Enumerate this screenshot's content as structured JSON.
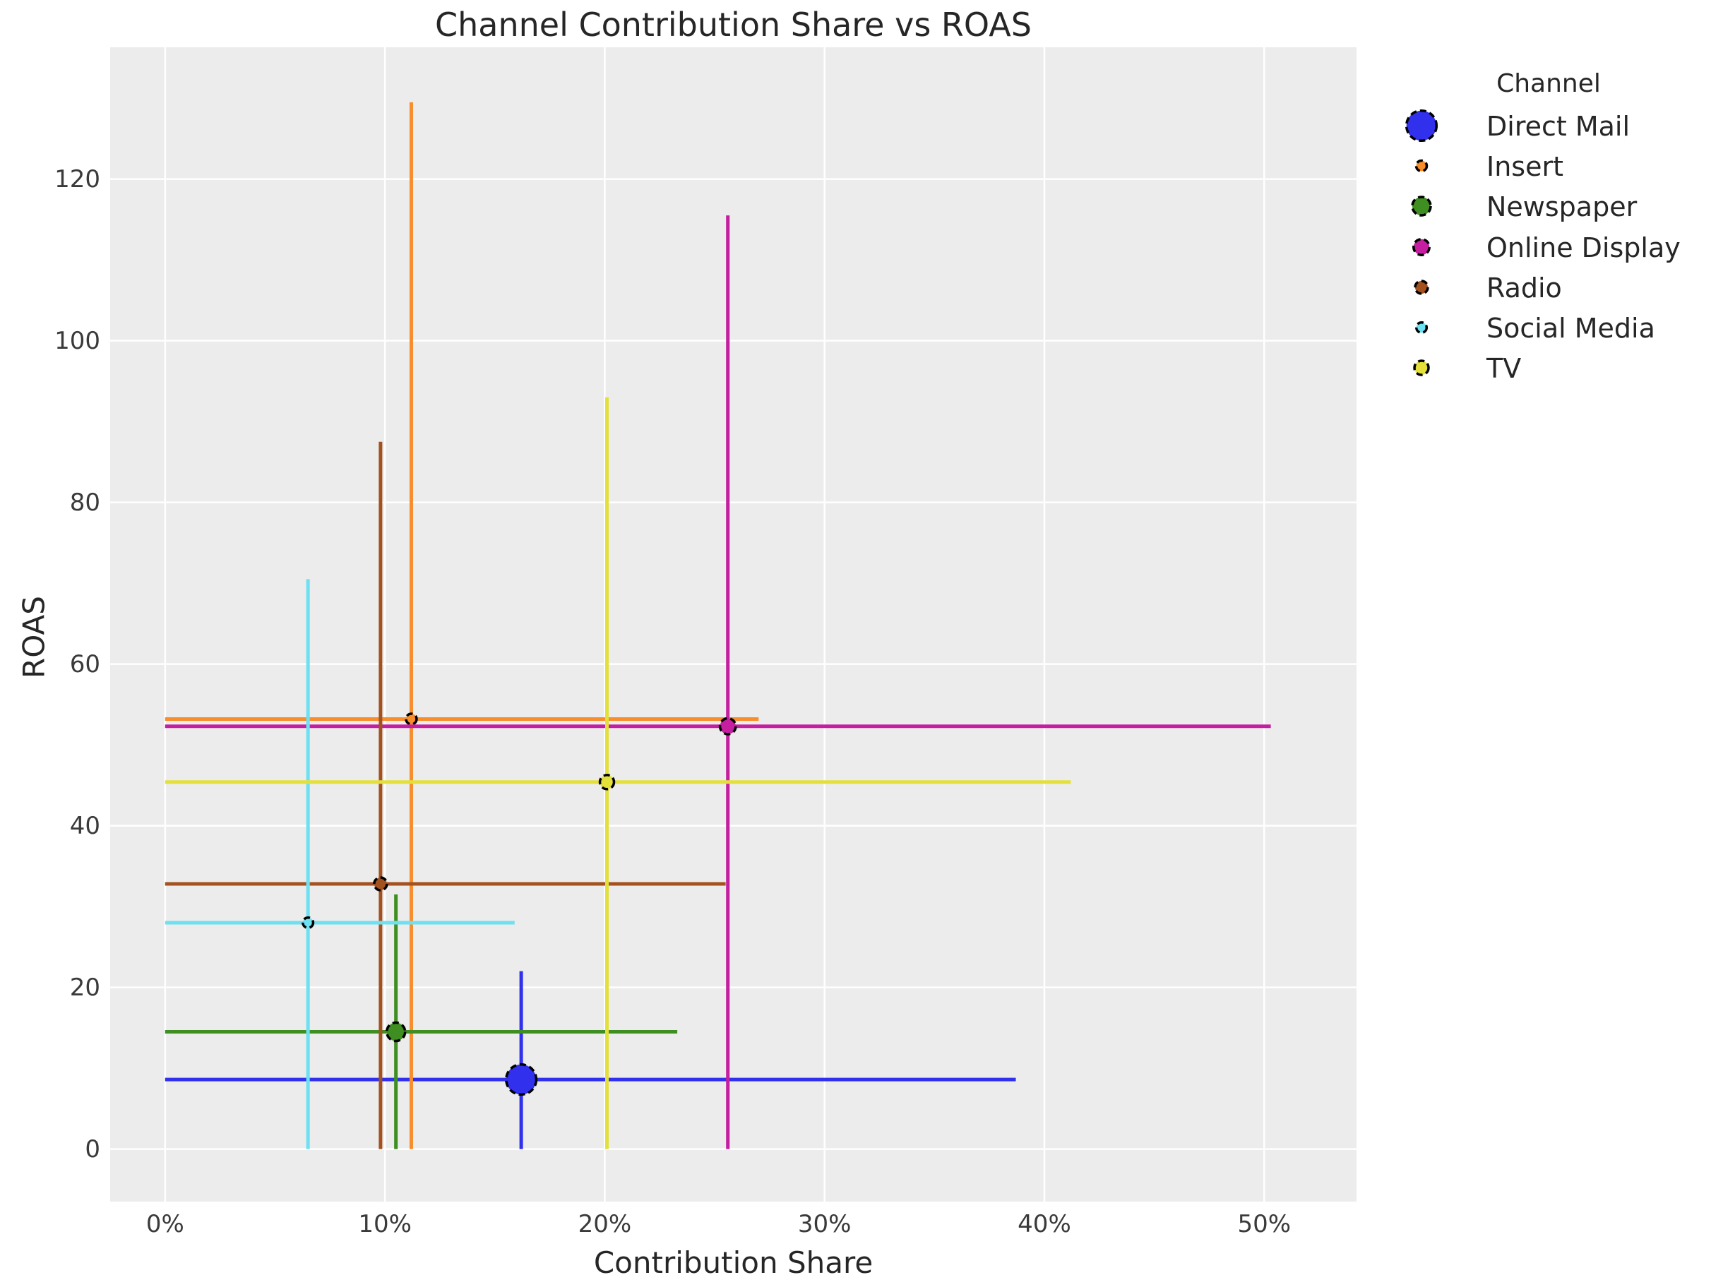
{
  "title": "Channel Contribution Share vs ROAS",
  "x_axis": {
    "label": "Contribution Share",
    "tick_labels": [
      "0%",
      "10%",
      "20%",
      "30%",
      "40%",
      "50%"
    ],
    "tick_values": [
      0,
      10,
      20,
      30,
      40,
      50
    ]
  },
  "y_axis": {
    "label": "ROAS",
    "tick_labels": [
      "0",
      "20",
      "40",
      "60",
      "80",
      "100",
      "120"
    ],
    "tick_values": [
      0,
      20,
      40,
      60,
      80,
      100,
      120
    ]
  },
  "legend": {
    "title": "Channel",
    "items": [
      "Direct Mail",
      "Insert",
      "Newspaper",
      "Online Display",
      "Radio",
      "Social Media",
      "TV"
    ]
  },
  "colors": {
    "figure_background": "#ffffff",
    "plot_background": "#ececec",
    "gridline": "#ffffff",
    "text": "#262626",
    "tick_text": "#3a3a3a",
    "marker_edge": "#000000"
  },
  "chart_data": {
    "type": "scatter",
    "title": "Channel Contribution Share vs ROAS",
    "xlabel": "Contribution Share",
    "ylabel": "ROAS",
    "x_unit": "percent",
    "xlim": [
      -2.5,
      54.2
    ],
    "ylim": [
      -6.5,
      136.3
    ],
    "grid": true,
    "legend_position": "right-outside",
    "error_bars": "asymmetric, lower bounds clipped at 0 on both axes",
    "series": [
      {
        "name": "Direct Mail",
        "color": "#3030ed",
        "x": 16.2,
        "y": 8.6,
        "x_lo": 0,
        "x_hi": 38.7,
        "y_lo": 0,
        "y_hi": 22.0,
        "marker_radius": 21.3
      },
      {
        "name": "Insert",
        "color": "#f78d2b",
        "x": 11.2,
        "y": 53.2,
        "x_lo": 0,
        "x_hi": 27.0,
        "y_lo": 0,
        "y_hi": 129.5,
        "marker_radius": 7.5
      },
      {
        "name": "Newspaper",
        "color": "#3e8e21",
        "x": 10.5,
        "y": 14.5,
        "x_lo": 0,
        "x_hi": 23.3,
        "y_lo": 0,
        "y_hi": 31.5,
        "marker_radius": 13
      },
      {
        "name": "Online Display",
        "color": "#c51ea0",
        "x": 25.6,
        "y": 52.3,
        "x_lo": 0,
        "x_hi": 50.3,
        "y_lo": 0,
        "y_hi": 115.5,
        "marker_radius": 11.2
      },
      {
        "name": "Radio",
        "color": "#a3511f",
        "x": 9.8,
        "y": 32.8,
        "x_lo": 0,
        "x_hi": 25.5,
        "y_lo": 0,
        "y_hi": 87.5,
        "marker_radius": 9
      },
      {
        "name": "Social Media",
        "color": "#6de0f1",
        "x": 6.5,
        "y": 28.0,
        "x_lo": 0,
        "x_hi": 15.9,
        "y_lo": 0,
        "y_hi": 70.5,
        "marker_radius": 7.3
      },
      {
        "name": "TV",
        "color": "#e3e03c",
        "x": 20.1,
        "y": 45.4,
        "x_lo": 0,
        "x_hi": 41.2,
        "y_lo": 0,
        "y_hi": 93.0,
        "marker_radius": 10
      }
    ]
  }
}
